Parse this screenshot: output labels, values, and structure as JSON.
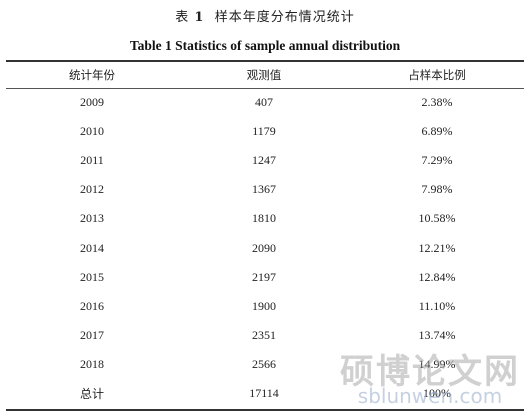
{
  "caption_cn": {
    "prefix": "表",
    "number": "1",
    "text": "样本年度分布情况统计"
  },
  "caption_en": "Table 1 Statistics of sample annual distribution",
  "table": {
    "headers": [
      "统计年份",
      "观测值",
      "占样本比例"
    ],
    "rows": [
      [
        "2009",
        "407",
        "2.38%"
      ],
      [
        "2010",
        "1179",
        "6.89%"
      ],
      [
        "2011",
        "1247",
        "7.29%"
      ],
      [
        "2012",
        "1367",
        "7.98%"
      ],
      [
        "2013",
        "1810",
        "10.58%"
      ],
      [
        "2014",
        "2090",
        "12.21%"
      ],
      [
        "2015",
        "2197",
        "12.84%"
      ],
      [
        "2016",
        "1900",
        "11.10%"
      ],
      [
        "2017",
        "2351",
        "13.74%"
      ],
      [
        "2018",
        "2566",
        "14.99%"
      ],
      [
        "总计",
        "17114",
        "100%"
      ]
    ]
  },
  "watermark": {
    "cn": "硕博论文网",
    "en": "sblunwen.com"
  }
}
